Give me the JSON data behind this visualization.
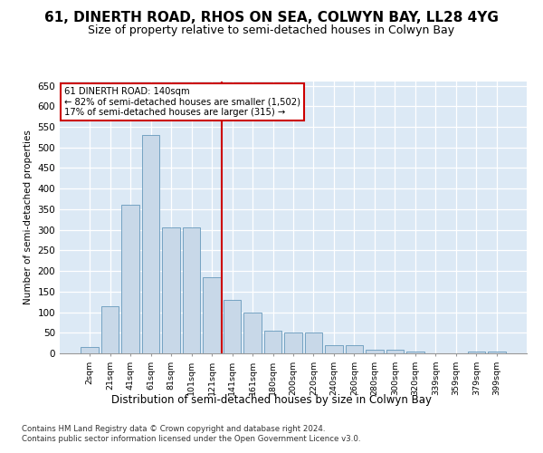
{
  "title": "61, DINERTH ROAD, RHOS ON SEA, COLWYN BAY, LL28 4YG",
  "subtitle": "Size of property relative to semi-detached houses in Colwyn Bay",
  "xlabel": "Distribution of semi-detached houses by size in Colwyn Bay",
  "ylabel": "Number of semi-detached properties",
  "categories": [
    "2sqm",
    "21sqm",
    "41sqm",
    "61sqm",
    "81sqm",
    "101sqm",
    "121sqm",
    "141sqm",
    "161sqm",
    "180sqm",
    "200sqm",
    "220sqm",
    "240sqm",
    "260sqm",
    "280sqm",
    "300sqm",
    "320sqm",
    "339sqm",
    "359sqm",
    "379sqm",
    "399sqm"
  ],
  "values": [
    15,
    115,
    360,
    530,
    305,
    305,
    185,
    130,
    100,
    55,
    50,
    50,
    20,
    20,
    8,
    8,
    5,
    0,
    0,
    5,
    5
  ],
  "bar_color": "#c8d8e8",
  "bar_edge_color": "#6699bb",
  "property_line_color": "#cc0000",
  "annotation_text": "61 DINERTH ROAD: 140sqm\n← 82% of semi-detached houses are smaller (1,502)\n17% of semi-detached houses are larger (315) →",
  "annotation_box_color": "#ffffff",
  "annotation_box_edge": "#cc0000",
  "footnote1": "Contains HM Land Registry data © Crown copyright and database right 2024.",
  "footnote2": "Contains public sector information licensed under the Open Government Licence v3.0.",
  "plot_bg_color": "#dce9f5",
  "ylim_max": 660,
  "title_fontsize": 11,
  "subtitle_fontsize": 9
}
